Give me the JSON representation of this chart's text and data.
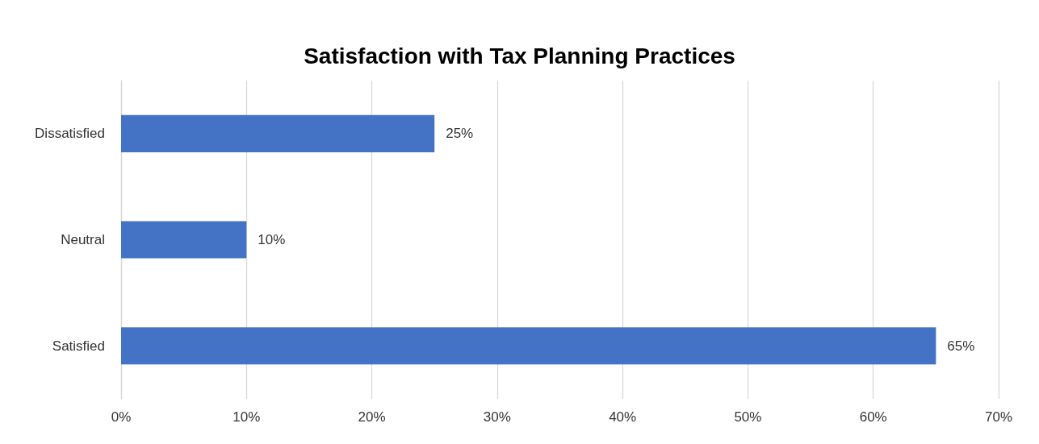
{
  "chart_data": {
    "type": "bar",
    "orientation": "horizontal",
    "title": "Satisfaction with Tax Planning Practices",
    "categories": [
      "Dissatisfied",
      "Neutral",
      "Satisfied"
    ],
    "values": [
      25,
      10,
      65
    ],
    "value_labels": [
      "25%",
      "10%",
      "65%"
    ],
    "color": "#4472c4",
    "xlim": [
      0,
      70
    ],
    "xticks": [
      {
        "value": 0,
        "label": "0%"
      },
      {
        "value": 10,
        "label": "10%"
      },
      {
        "value": 20,
        "label": "20%"
      },
      {
        "value": 30,
        "label": "30%"
      },
      {
        "value": 40,
        "label": "40%"
      },
      {
        "value": 50,
        "label": "50%"
      },
      {
        "value": 60,
        "label": "60%"
      },
      {
        "value": 70,
        "label": "70%"
      }
    ],
    "grid": "x"
  }
}
